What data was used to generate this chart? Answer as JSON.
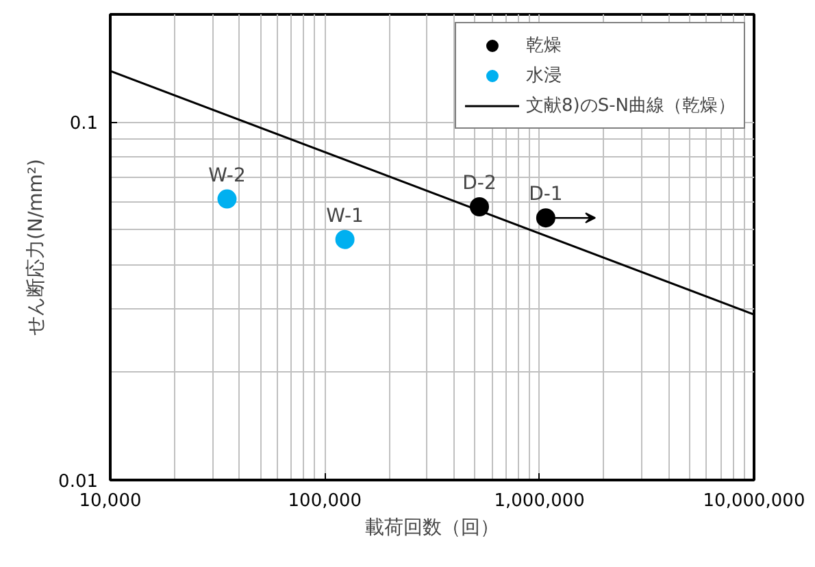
{
  "chart_data": {
    "type": "scatter",
    "xlabel": "載荷回数（回）",
    "ylabel": "せん断応力(N/mm²)",
    "log": "xy",
    "xlim": [
      10000,
      10000000
    ],
    "ylim": [
      0.01,
      0.2
    ],
    "xticks": [
      {
        "value": 10000,
        "label": "10,000"
      },
      {
        "value": 100000,
        "label": "100,000"
      },
      {
        "value": 1000000,
        "label": "1,000,000"
      },
      {
        "value": 10000000,
        "label": "10,000,000"
      }
    ],
    "yticks": [
      0.01,
      0.1
    ],
    "grid": true,
    "legend": "top right",
    "series": [
      {
        "name": "乾燥",
        "marker": "circle",
        "color": "#000000",
        "x": [
          1070000,
          525000
        ],
        "values": [
          0.054,
          0.058
        ]
      },
      {
        "name": "水浸",
        "marker": "circle",
        "color": "#00b0f0",
        "x": [
          124000,
          35000
        ],
        "values": [
          0.047,
          0.061
        ]
      },
      {
        "name": "文献8)のS-N曲線（乾燥）",
        "type": "line",
        "marker": "none",
        "color": "#000000",
        "x": [
          10000,
          10000000
        ],
        "values": [
          0.139,
          0.029
        ]
      }
    ],
    "annotations": [
      {
        "text": "D-1",
        "x": 1070000,
        "y": 0.054
      },
      {
        "text": "D-2",
        "x": 525000,
        "y": 0.058
      },
      {
        "text": "W-1",
        "x": 124000,
        "y": 0.047
      },
      {
        "text": "W-2",
        "x": 35000,
        "y": 0.061
      }
    ]
  }
}
